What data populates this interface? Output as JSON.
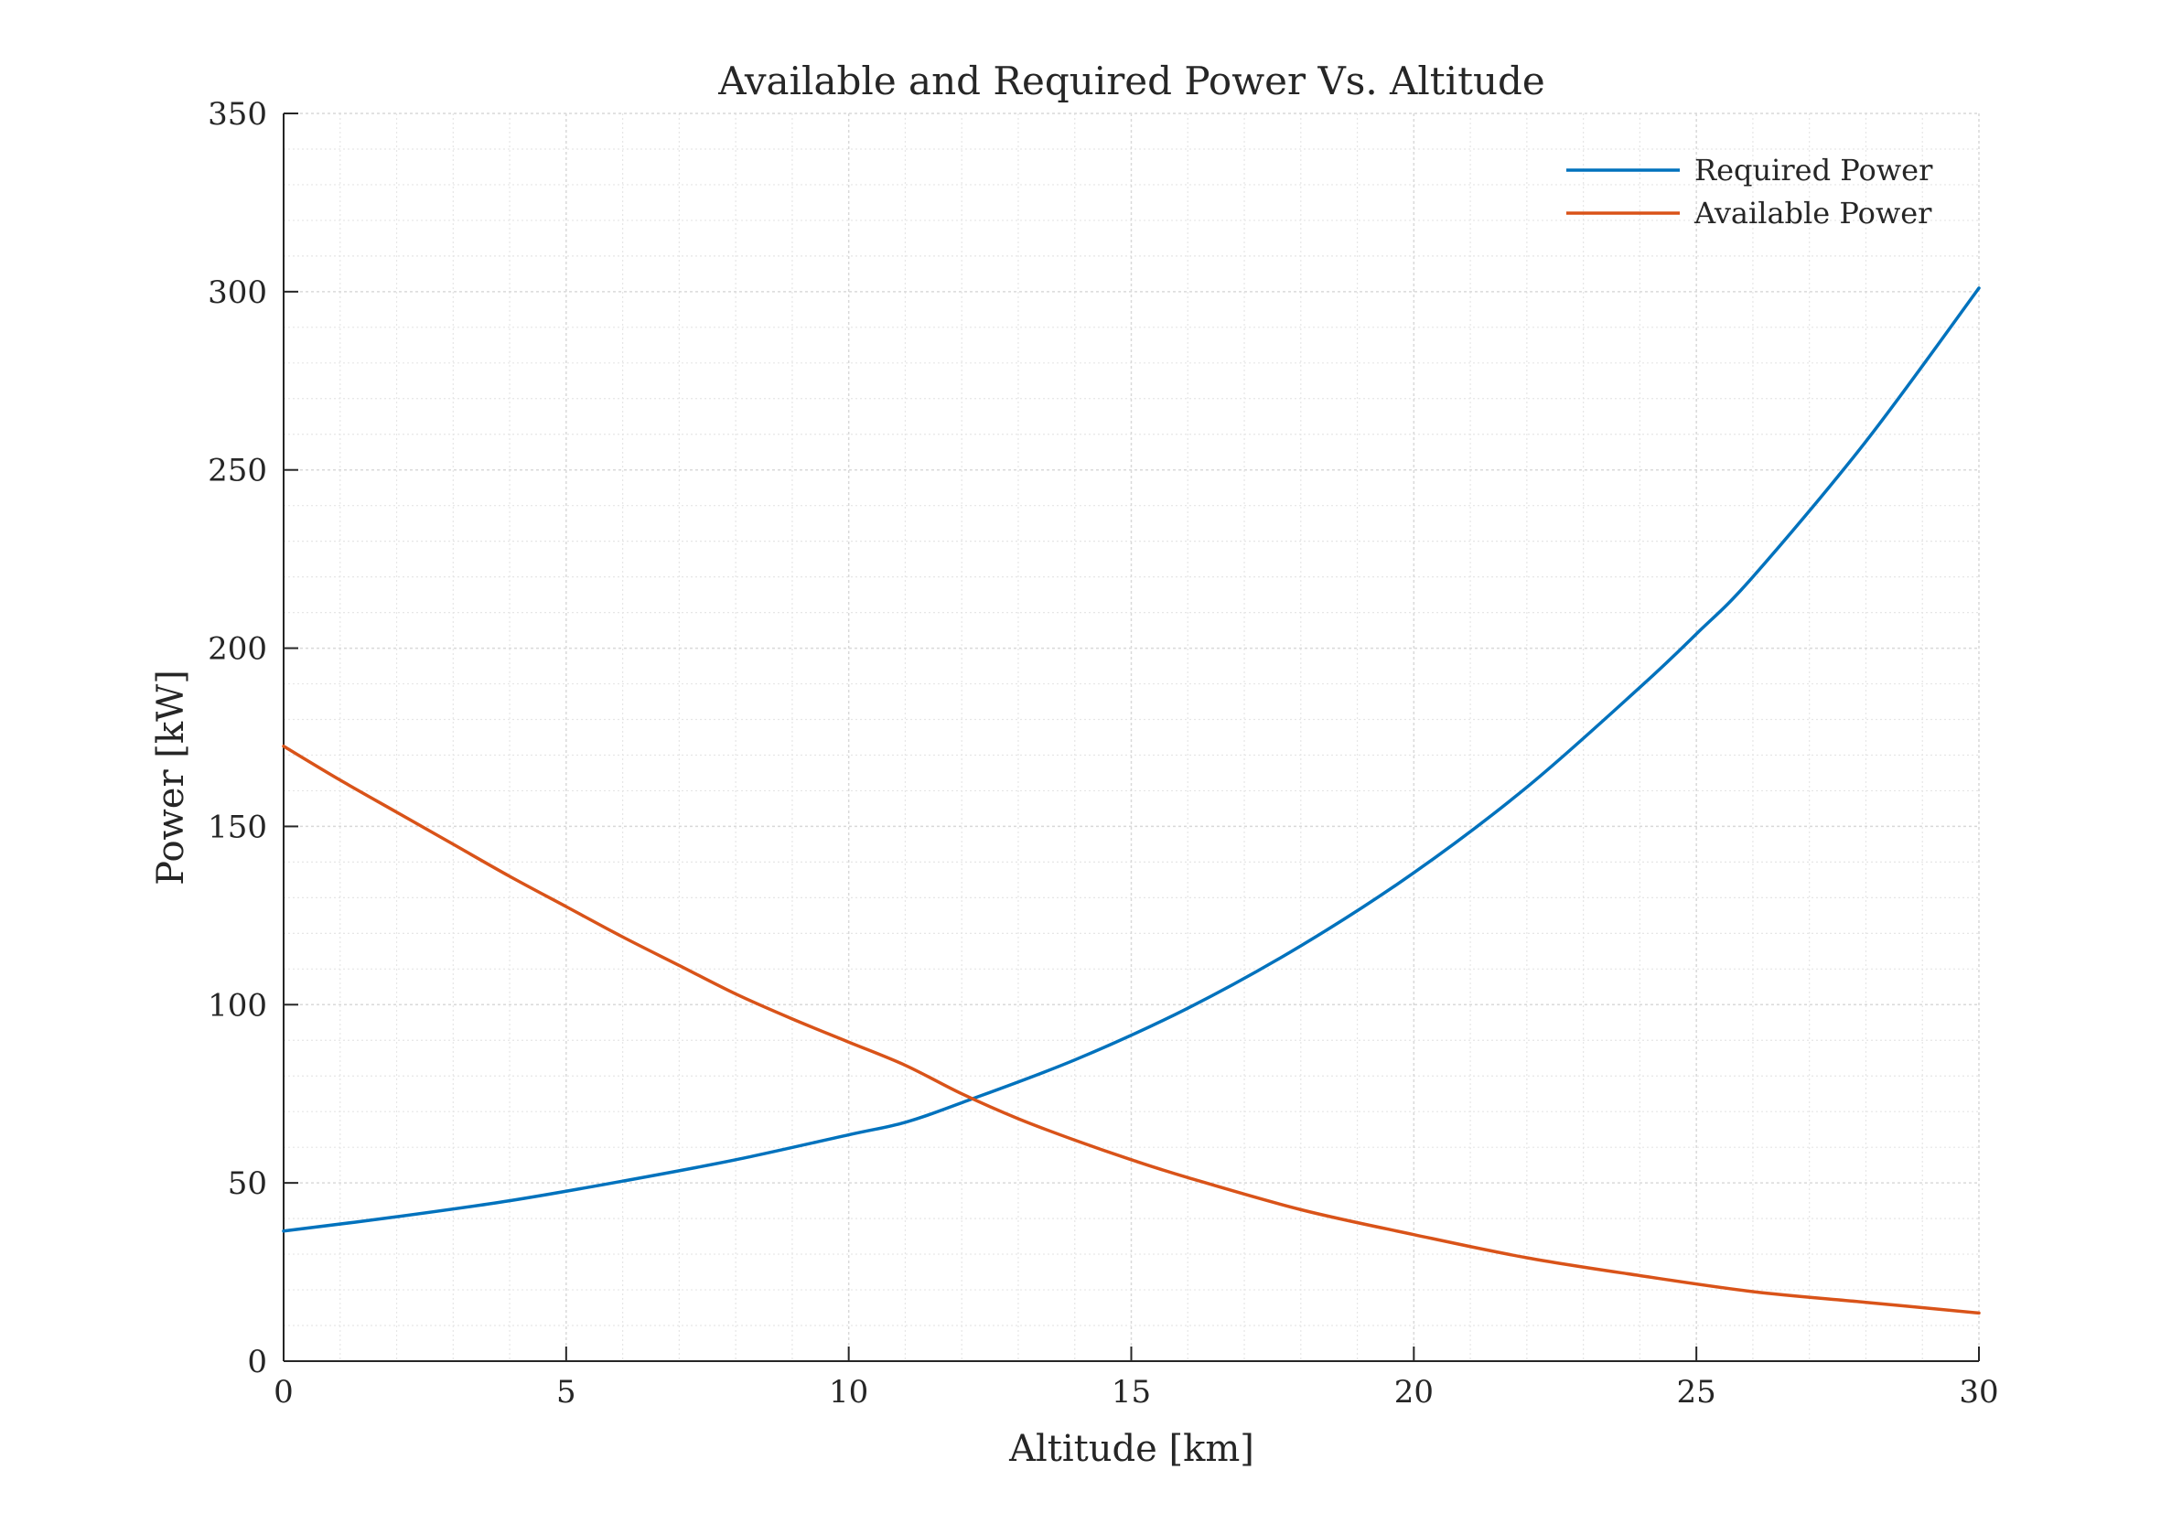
{
  "chart_data": {
    "type": "line",
    "title": "Available and Required Power Vs. Altitude",
    "xlabel": "Altitude [km]",
    "ylabel": "Power [kW]",
    "xlim": [
      0,
      30
    ],
    "ylim": [
      0,
      350
    ],
    "xticks": [
      0,
      5,
      10,
      15,
      20,
      25,
      30
    ],
    "yticks": [
      0,
      50,
      100,
      150,
      200,
      250,
      300,
      350
    ],
    "grid": true,
    "minor_grid": true,
    "legend_position": "top-right",
    "series": [
      {
        "name": "Required Power",
        "color": "#0072BD",
        "x": [
          0,
          2,
          4,
          6,
          8,
          10,
          11,
          12,
          14,
          16,
          18,
          20,
          22,
          24,
          25,
          26,
          28,
          30
        ],
        "y": [
          36.5,
          40.5,
          45,
          50.5,
          56.5,
          63.5,
          67,
          72.5,
          84.5,
          99,
          116.5,
          137,
          161,
          189,
          204,
          220,
          258,
          301
        ]
      },
      {
        "name": "Available Power",
        "color": "#D95319",
        "x": [
          0,
          1,
          2,
          3,
          4,
          5,
          6,
          7,
          8,
          9,
          10,
          11,
          12,
          13,
          14,
          15,
          16,
          18,
          20,
          22,
          24,
          26,
          28,
          30
        ],
        "y": [
          172.5,
          163,
          154,
          145,
          136,
          127.5,
          119,
          111,
          103,
          96,
          89.5,
          83,
          75,
          68,
          62,
          56.5,
          51.5,
          42.5,
          35.5,
          29,
          24,
          19.5,
          16.5,
          13.5
        ]
      }
    ]
  }
}
